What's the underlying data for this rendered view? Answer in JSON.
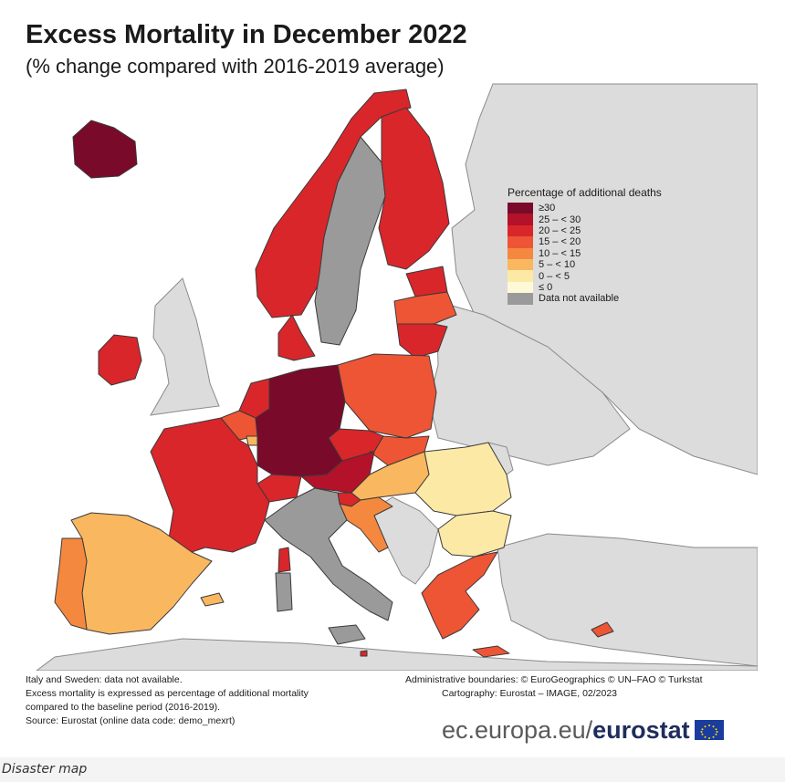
{
  "title": "Excess Mortality in December 2022",
  "subtitle": "(% change compared with 2016-2019 average)",
  "legend": {
    "title": "Percentage of additional deaths",
    "items": [
      {
        "label": "≥30",
        "color": "#7a0a2a"
      },
      {
        "label": "25 – < 30",
        "color": "#b3122a"
      },
      {
        "label": "20 – < 25",
        "color": "#d9262a"
      },
      {
        "label": "15 – < 20",
        "color": "#ee5535"
      },
      {
        "label": "10 – < 15",
        "color": "#f5883f"
      },
      {
        "label": "5 – < 10",
        "color": "#f9b760"
      },
      {
        "label": "0 – < 5",
        "color": "#fde9a6"
      },
      {
        "label": "≤ 0",
        "color": "#fdf9d6"
      },
      {
        "label": "Data not available",
        "color": "#9a9a9a"
      }
    ]
  },
  "regions": [
    {
      "name": "Iceland",
      "class": "≥30"
    },
    {
      "name": "Norway",
      "class": "20 – < 25"
    },
    {
      "name": "Sweden",
      "class": "Data not available"
    },
    {
      "name": "Finland",
      "class": "20 – < 25"
    },
    {
      "name": "Estonia",
      "class": "20 – < 25"
    },
    {
      "name": "Latvia",
      "class": "15 – < 20"
    },
    {
      "name": "Lithuania",
      "class": "20 – < 25"
    },
    {
      "name": "Denmark",
      "class": "20 – < 25"
    },
    {
      "name": "Ireland",
      "class": "20 – < 25"
    },
    {
      "name": "Netherlands",
      "class": "20 – < 25"
    },
    {
      "name": "Belgium",
      "class": "15 – < 20"
    },
    {
      "name": "Luxembourg",
      "class": "5 – < 10"
    },
    {
      "name": "Germany",
      "class": "≥30"
    },
    {
      "name": "Poland",
      "class": "15 – < 20"
    },
    {
      "name": "Czechia",
      "class": "20 – < 25"
    },
    {
      "name": "Slovakia",
      "class": "15 – < 20"
    },
    {
      "name": "Austria",
      "class": "25 – < 30"
    },
    {
      "name": "Switzerland",
      "class": "20 – < 25"
    },
    {
      "name": "Liechtenstein",
      "class": "20 – < 25"
    },
    {
      "name": "Slovenia",
      "class": "20 – < 25"
    },
    {
      "name": "Hungary",
      "class": "5 – < 10"
    },
    {
      "name": "Croatia",
      "class": "10 – < 15"
    },
    {
      "name": "Romania",
      "class": "0 – < 5"
    },
    {
      "name": "Bulgaria",
      "class": "0 – < 5"
    },
    {
      "name": "Greece",
      "class": "15 – < 20"
    },
    {
      "name": "Cyprus",
      "class": "15 – < 20"
    },
    {
      "name": "France",
      "class": "20 – < 25"
    },
    {
      "name": "Spain",
      "class": "5 – < 10"
    },
    {
      "name": "Portugal",
      "class": "10 – < 15"
    },
    {
      "name": "Italy",
      "class": "Data not available"
    },
    {
      "name": "Malta",
      "class": "20 – < 25"
    }
  ],
  "notes": [
    "Italy and Sweden: data not available.",
    "Excess mortality is expressed as percentage of additional mortality",
    "compared to the baseline period (2016-2019).",
    "Source: Eurostat (online data code: demo_mexrt)"
  ],
  "credits": [
    "Administrative boundaries: © EuroGeographics © UN–FAO © Turkstat",
    "Cartography: Eurostat – IMAGE, 02/2023"
  ],
  "brand": {
    "url": "ec.europa.eu/",
    "name": "eurostat"
  },
  "caption": "Disaster map",
  "colors": {
    "other_land": "#dcdcdc",
    "sea": "#ffffff",
    "border": "#3a3a3a",
    "brand_blue": "#1f2d5c"
  }
}
